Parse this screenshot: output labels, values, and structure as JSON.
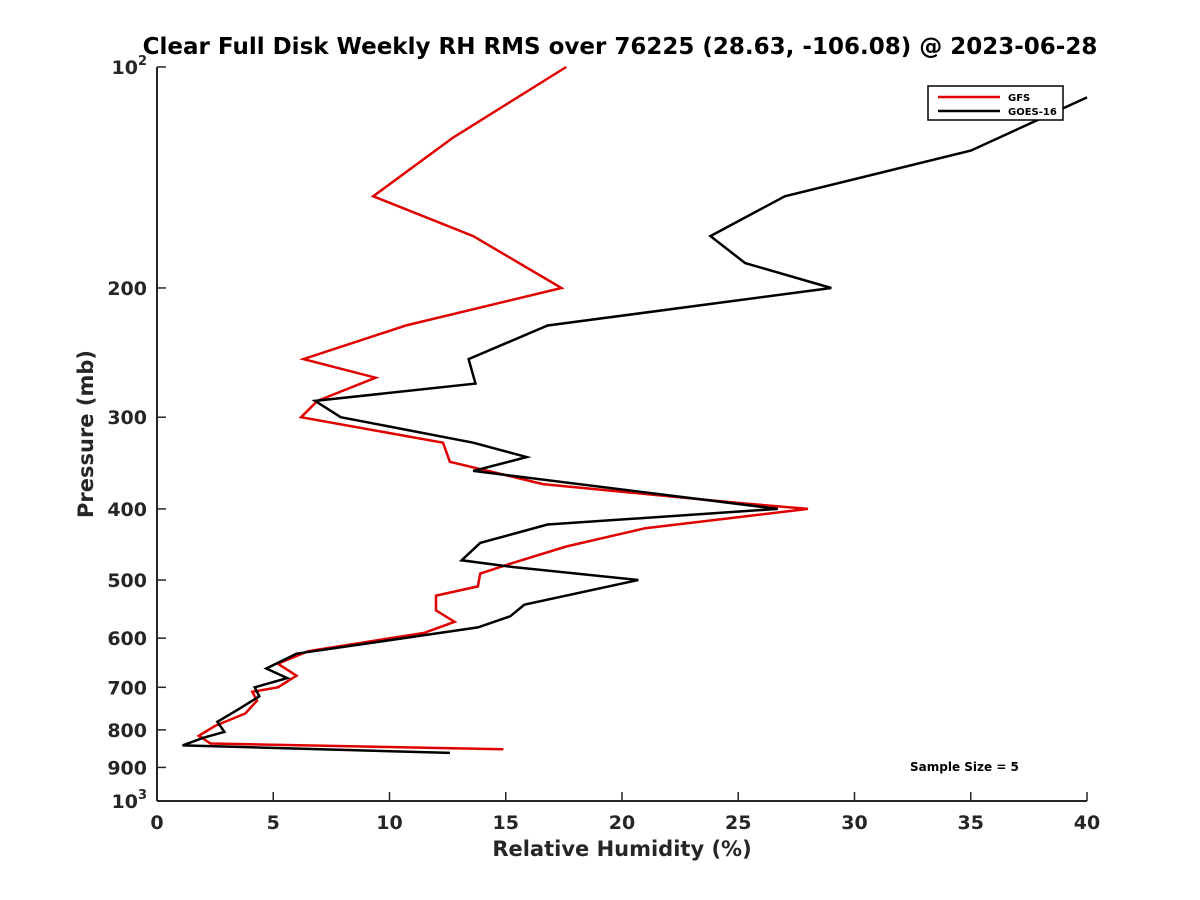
{
  "chart_data": {
    "type": "line",
    "title": "Clear Full Disk Weekly RH RMS over 76225 (28.63, -106.08) @ 2023-06-28",
    "xlabel": "Relative Humidity (%)",
    "ylabel": "Pressure (mb)",
    "xlim": [
      0,
      40
    ],
    "ylim": [
      100,
      1000
    ],
    "yscale": "log",
    "y_reversed": true,
    "x_ticks": [
      {
        "value": 0,
        "label": "0"
      },
      {
        "value": 5,
        "label": "5"
      },
      {
        "value": 10,
        "label": "10"
      },
      {
        "value": 15,
        "label": "15"
      },
      {
        "value": 20,
        "label": "20"
      },
      {
        "value": 25,
        "label": "25"
      },
      {
        "value": 30,
        "label": "30"
      },
      {
        "value": 35,
        "label": "35"
      },
      {
        "value": 40,
        "label": "40"
      }
    ],
    "y_ticks": [
      {
        "value": 100,
        "base": "10",
        "exp": "2"
      },
      {
        "value": 200,
        "label": "200"
      },
      {
        "value": 300,
        "label": "300"
      },
      {
        "value": 400,
        "label": "400"
      },
      {
        "value": 500,
        "label": "500"
      },
      {
        "value": 600,
        "label": "600"
      },
      {
        "value": 700,
        "label": "700"
      },
      {
        "value": 800,
        "label": "800"
      },
      {
        "value": 900,
        "label": "900"
      },
      {
        "value": 1000,
        "base": "10",
        "exp": "3"
      }
    ],
    "series": [
      {
        "name": "GFS",
        "color": "#e00000",
        "points": [
          [
            17.6,
            100
          ],
          [
            12.7,
            125
          ],
          [
            9.3,
            150
          ],
          [
            13.6,
            170
          ],
          [
            17.4,
            200
          ],
          [
            10.7,
            225
          ],
          [
            6.3,
            250
          ],
          [
            9.4,
            265
          ],
          [
            6.9,
            285
          ],
          [
            6.2,
            300
          ],
          [
            12.3,
            325
          ],
          [
            12.6,
            345
          ],
          [
            16.6,
            370
          ],
          [
            24.8,
            392
          ],
          [
            28.0,
            400
          ],
          [
            21.0,
            425
          ],
          [
            17.6,
            450
          ],
          [
            15.2,
            475
          ],
          [
            13.9,
            490
          ],
          [
            13.8,
            510
          ],
          [
            12.0,
            525
          ],
          [
            12.0,
            550
          ],
          [
            12.8,
            570
          ],
          [
            11.5,
            590
          ],
          [
            6.5,
            625
          ],
          [
            5.2,
            650
          ],
          [
            6.0,
            675
          ],
          [
            5.2,
            700
          ],
          [
            4.1,
            710
          ],
          [
            4.3,
            730
          ],
          [
            3.8,
            760
          ],
          [
            2.5,
            790
          ],
          [
            1.8,
            815
          ],
          [
            2.3,
            835
          ],
          [
            14.9,
            850
          ]
        ]
      },
      {
        "name": "GOES-16",
        "color": "#000000",
        "points": [
          [
            40.0,
            110
          ],
          [
            35.0,
            130
          ],
          [
            27.0,
            150
          ],
          [
            23.8,
            170
          ],
          [
            25.3,
            185
          ],
          [
            29.0,
            200
          ],
          [
            16.8,
            225
          ],
          [
            13.4,
            250
          ],
          [
            13.7,
            270
          ],
          [
            6.8,
            285
          ],
          [
            7.9,
            300
          ],
          [
            13.6,
            325
          ],
          [
            15.9,
            340
          ],
          [
            13.6,
            355
          ],
          [
            26.7,
            400
          ],
          [
            16.8,
            420
          ],
          [
            13.9,
            445
          ],
          [
            13.1,
            470
          ],
          [
            15.3,
            480
          ],
          [
            20.7,
            500
          ],
          [
            15.8,
            540
          ],
          [
            15.2,
            560
          ],
          [
            13.8,
            580
          ],
          [
            6.0,
            630
          ],
          [
            4.7,
            660
          ],
          [
            5.6,
            680
          ],
          [
            4.2,
            700
          ],
          [
            4.4,
            720
          ],
          [
            3.5,
            750
          ],
          [
            2.6,
            780
          ],
          [
            2.9,
            805
          ],
          [
            2.0,
            820
          ],
          [
            1.1,
            840
          ],
          [
            12.6,
            860
          ]
        ]
      }
    ],
    "legend": {
      "position": "top-right"
    },
    "annotation": "Sample Size = 5",
    "grid": false
  }
}
